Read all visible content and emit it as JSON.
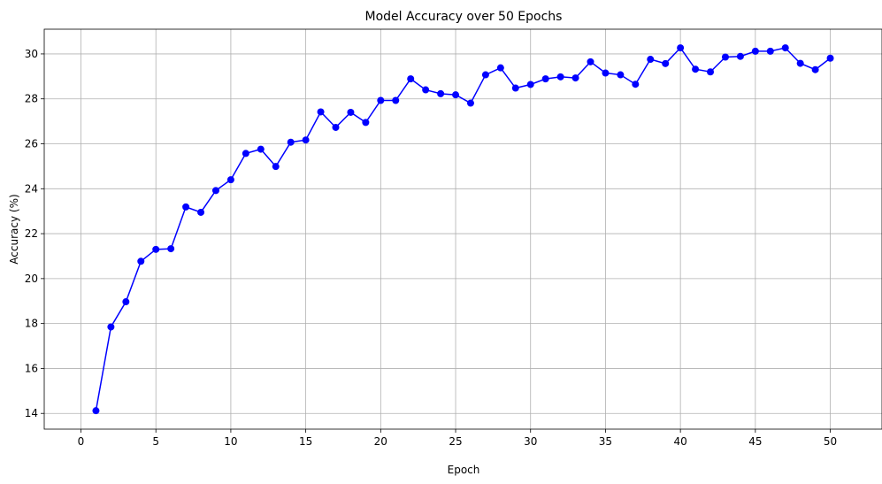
{
  "chart_data": {
    "type": "line",
    "title": "Model Accuracy over 50 Epochs",
    "xlabel": "Epoch",
    "ylabel": "Accuracy (%)",
    "xlim": [
      -2.45,
      53.45
    ],
    "ylim": [
      13.3,
      31.1
    ],
    "xticks": [
      0,
      5,
      10,
      15,
      20,
      25,
      30,
      35,
      40,
      45,
      50
    ],
    "yticks": [
      14,
      16,
      18,
      20,
      22,
      24,
      26,
      28,
      30
    ],
    "grid": true,
    "line_color": "#0000ff",
    "marker": "circle",
    "series": [
      {
        "x": [
          1,
          2,
          3,
          4,
          5,
          6,
          7,
          8,
          9,
          10,
          11,
          12,
          13,
          14,
          15,
          16,
          17,
          18,
          19,
          20,
          21,
          22,
          23,
          24,
          25,
          26,
          27,
          28,
          29,
          30,
          31,
          32,
          33,
          34,
          35,
          36,
          37,
          38,
          39,
          40,
          41,
          42,
          43,
          44,
          45,
          46,
          47,
          48,
          49,
          50
        ],
        "values": [
          14.12,
          17.85,
          18.97,
          20.77,
          21.3,
          21.33,
          23.19,
          22.95,
          23.92,
          24.4,
          25.57,
          25.76,
          24.99,
          26.07,
          26.17,
          27.42,
          26.73,
          27.4,
          26.95,
          27.93,
          27.93,
          28.89,
          28.4,
          28.23,
          28.18,
          27.81,
          29.07,
          29.38,
          28.48,
          28.64,
          28.89,
          28.98,
          28.93,
          29.65,
          29.15,
          29.07,
          28.65,
          29.76,
          29.57,
          30.27,
          29.32,
          29.2,
          29.86,
          29.89,
          30.12,
          30.12,
          30.27,
          29.58,
          29.3,
          29.81
        ]
      }
    ]
  }
}
